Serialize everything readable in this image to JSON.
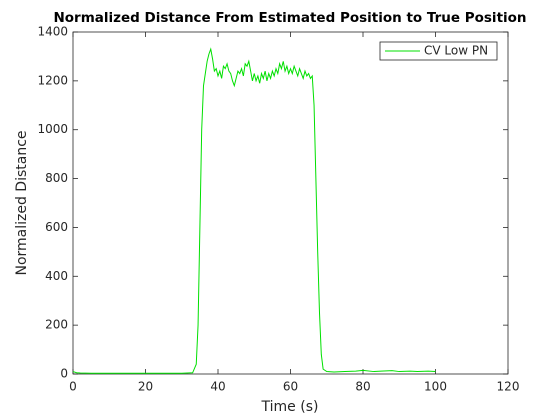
{
  "chart_data": {
    "type": "line",
    "title": "Normalized Distance From Estimated Position to True Position",
    "x_label": "Time (s)",
    "y_label": "Normalized Distance",
    "xlim": [
      0,
      120
    ],
    "xticks": [
      0,
      20,
      40,
      60,
      80,
      100,
      120
    ],
    "ylim": [
      0,
      1400
    ],
    "yticks": [
      0,
      200,
      400,
      600,
      800,
      1000,
      1200,
      1400
    ],
    "legend": "northeast",
    "grid": false,
    "x": [
      0,
      1,
      2,
      5,
      10,
      15,
      20,
      25,
      30,
      33,
      34,
      34.5,
      35,
      35.5,
      36,
      36.5,
      37,
      37.5,
      38,
      38.5,
      39,
      39.5,
      40,
      40.5,
      41,
      41.5,
      42,
      42.5,
      43,
      43.5,
      44,
      44.5,
      45,
      45.5,
      46,
      46.5,
      47,
      47.5,
      48,
      48.5,
      49,
      49.5,
      50,
      50.5,
      51,
      51.5,
      52,
      52.5,
      53,
      53.5,
      54,
      54.5,
      55,
      55.5,
      56,
      56.5,
      57,
      57.5,
      58,
      58.5,
      59,
      59.5,
      60,
      60.5,
      61,
      61.5,
      62,
      62.5,
      63,
      63.5,
      64,
      64.5,
      65,
      65.5,
      66,
      66.5,
      67,
      67.5,
      68,
      68.5,
      69,
      70,
      72,
      75,
      78,
      80,
      83,
      85,
      88,
      90,
      93,
      95,
      98,
      100
    ],
    "series": [
      {
        "name": "CV Low PN",
        "color": "#00e000",
        "values": [
          10,
          5,
          4,
          3,
          3,
          3,
          3,
          3,
          3,
          5,
          40,
          200,
          600,
          1000,
          1180,
          1230,
          1280,
          1310,
          1330,
          1290,
          1240,
          1250,
          1220,
          1240,
          1210,
          1260,
          1250,
          1270,
          1240,
          1230,
          1200,
          1180,
          1210,
          1240,
          1230,
          1250,
          1220,
          1270,
          1260,
          1280,
          1240,
          1200,
          1230,
          1200,
          1220,
          1190,
          1230,
          1210,
          1240,
          1200,
          1230,
          1210,
          1240,
          1220,
          1250,
          1230,
          1270,
          1250,
          1280,
          1240,
          1260,
          1230,
          1250,
          1230,
          1260,
          1240,
          1220,
          1250,
          1230,
          1210,
          1240,
          1220,
          1230,
          1210,
          1220,
          1100,
          800,
          500,
          250,
          80,
          20,
          10,
          8,
          10,
          12,
          15,
          10,
          12,
          14,
          10,
          12,
          10,
          12,
          10
        ]
      }
    ]
  }
}
